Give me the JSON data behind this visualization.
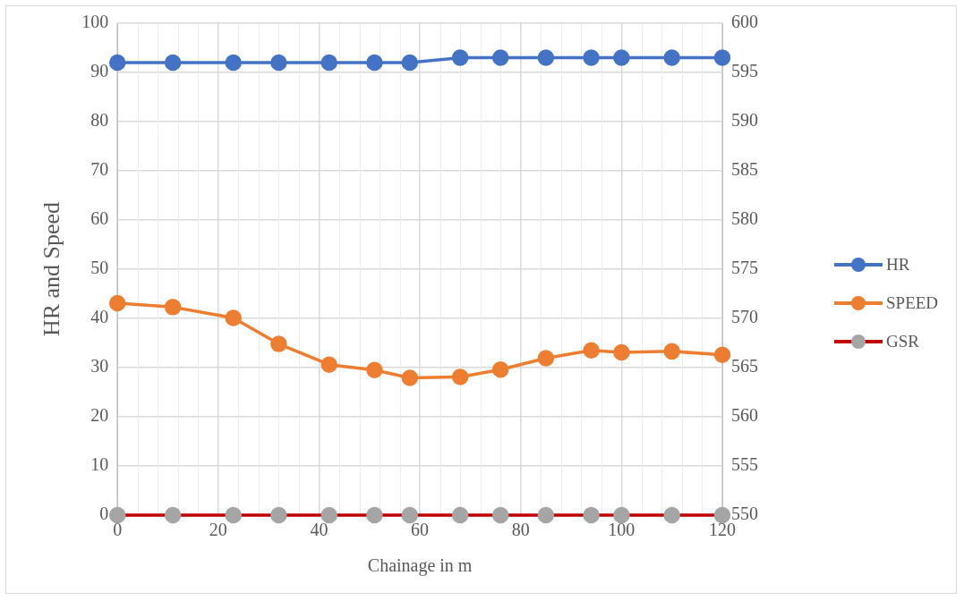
{
  "chart_data": {
    "type": "line",
    "xlabel": "Chainage in m",
    "ylabel": "HR and Speed",
    "x": [
      0,
      11,
      23,
      32,
      42,
      51,
      58,
      68,
      76,
      85,
      94,
      100,
      110,
      120
    ],
    "series": [
      {
        "name": "HR",
        "color": "#4472c4",
        "values": [
          92,
          92,
          92,
          92,
          92,
          92,
          92,
          93,
          93,
          93,
          93,
          93,
          93,
          93
        ]
      },
      {
        "name": "SPEED",
        "color": "#ed7d31",
        "values": [
          43.1,
          42.3,
          40.1,
          34.8,
          30.6,
          29.5,
          27.9,
          28.1,
          29.6,
          31.9,
          33.5,
          33.1,
          33.3,
          32.6
        ]
      },
      {
        "name": "GSR",
        "color": "#c00000",
        "colors": [
          "#a5a5a5",
          "#a5a5a5",
          "#a5a5a5",
          "#a5a5a5",
          "#a5a5a5",
          "#a5a5a5",
          "#a5a5a5",
          "#a5a5a5",
          "#a5a5a5",
          "#a5a5a5",
          "#a5a5a5",
          "#a5a5a5",
          "#a5a5a5",
          "#a5a5a5"
        ],
        "axis": "y2",
        "values": [
          550,
          550,
          550,
          550,
          550,
          550,
          550,
          550,
          550,
          550,
          550,
          550,
          550,
          550
        ]
      }
    ],
    "xlim": [
      0,
      120
    ],
    "xticks": [
      0,
      20,
      40,
      60,
      80,
      100,
      120
    ],
    "ylim": [
      0,
      100
    ],
    "yticks": [
      0,
      10,
      20,
      30,
      40,
      50,
      60,
      70,
      80,
      90,
      100
    ],
    "y2lim": [
      550,
      600
    ],
    "y2ticks": [
      550,
      555,
      560,
      565,
      570,
      575,
      580,
      585,
      590,
      595,
      600
    ],
    "grid": true,
    "legend": "right",
    "marker": "circle",
    "line_style": "solid"
  }
}
